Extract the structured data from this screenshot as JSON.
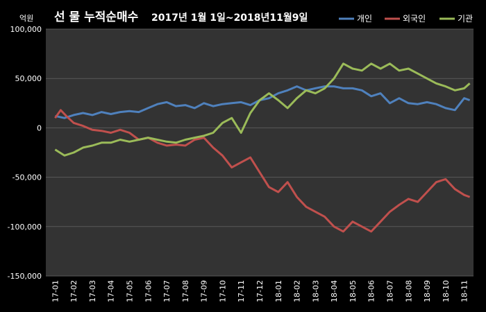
{
  "chart_data": {
    "type": "line",
    "title_main": "선 물 누적순매수",
    "title_period": "2017년 1월 1일~2018년11월9일",
    "unit_label": "억원",
    "ylim": [
      -150000,
      100000
    ],
    "y_ticks": [
      100000,
      50000,
      0,
      -50000,
      -100000,
      -150000
    ],
    "y_tick_labels": [
      "100,000",
      "50,000",
      "0",
      "-50,000",
      "-100,000",
      "-150,000"
    ],
    "x_labels": [
      "17-01",
      "17-02",
      "17-03",
      "17-04",
      "17-05",
      "17-06",
      "17-07",
      "17-08",
      "17-09",
      "17-10",
      "17-11",
      "17-12",
      "18-01",
      "18-02",
      "18-03",
      "18-04",
      "18-05",
      "18-06",
      "18-07",
      "18-08",
      "18-09",
      "18-10",
      "18-11"
    ],
    "grid": true,
    "legend_position": "top-right",
    "series": [
      {
        "name": "개인",
        "color": "#4F81BD",
        "values": [
          [
            0,
            12000
          ],
          [
            0.5,
            10000
          ],
          [
            1,
            13000
          ],
          [
            1.5,
            15000
          ],
          [
            2,
            13000
          ],
          [
            2.5,
            16000
          ],
          [
            3,
            14000
          ],
          [
            3.5,
            16000
          ],
          [
            4,
            17000
          ],
          [
            4.5,
            16000
          ],
          [
            5,
            20000
          ],
          [
            5.5,
            24000
          ],
          [
            6,
            26000
          ],
          [
            6.5,
            22000
          ],
          [
            7,
            23000
          ],
          [
            7.5,
            20000
          ],
          [
            8,
            25000
          ],
          [
            8.5,
            22000
          ],
          [
            9,
            24000
          ],
          [
            9.5,
            25000
          ],
          [
            10,
            26000
          ],
          [
            10.5,
            23000
          ],
          [
            11,
            28000
          ],
          [
            11.5,
            30000
          ],
          [
            12,
            35000
          ],
          [
            12.5,
            38000
          ],
          [
            13,
            42000
          ],
          [
            13.5,
            38000
          ],
          [
            14,
            40000
          ],
          [
            14.5,
            42000
          ],
          [
            15,
            42000
          ],
          [
            15.5,
            40000
          ],
          [
            16,
            40000
          ],
          [
            16.5,
            38000
          ],
          [
            17,
            32000
          ],
          [
            17.5,
            35000
          ],
          [
            18,
            25000
          ],
          [
            18.5,
            30000
          ],
          [
            19,
            25000
          ],
          [
            19.5,
            24000
          ],
          [
            20,
            26000
          ],
          [
            20.5,
            24000
          ],
          [
            21,
            20000
          ],
          [
            21.5,
            18000
          ],
          [
            22,
            30000
          ],
          [
            22.3,
            28000
          ]
        ]
      },
      {
        "name": "외국인",
        "color": "#C0504D",
        "values": [
          [
            0,
            10000
          ],
          [
            0.3,
            18000
          ],
          [
            0.6,
            12000
          ],
          [
            1,
            5000
          ],
          [
            1.5,
            2000
          ],
          [
            2,
            -2000
          ],
          [
            2.5,
            -3000
          ],
          [
            3,
            -5000
          ],
          [
            3.5,
            -2000
          ],
          [
            4,
            -5000
          ],
          [
            4.5,
            -12000
          ],
          [
            5,
            -10000
          ],
          [
            5.5,
            -15000
          ],
          [
            6,
            -18000
          ],
          [
            6.5,
            -17000
          ],
          [
            7,
            -18000
          ],
          [
            7.5,
            -12000
          ],
          [
            8,
            -10000
          ],
          [
            8.5,
            -20000
          ],
          [
            9,
            -28000
          ],
          [
            9.5,
            -40000
          ],
          [
            10,
            -35000
          ],
          [
            10.5,
            -30000
          ],
          [
            11,
            -45000
          ],
          [
            11.5,
            -60000
          ],
          [
            12,
            -65000
          ],
          [
            12.5,
            -55000
          ],
          [
            13,
            -70000
          ],
          [
            13.5,
            -80000
          ],
          [
            14,
            -85000
          ],
          [
            14.5,
            -90000
          ],
          [
            15,
            -100000
          ],
          [
            15.5,
            -105000
          ],
          [
            16,
            -95000
          ],
          [
            16.5,
            -100000
          ],
          [
            17,
            -105000
          ],
          [
            17.5,
            -95000
          ],
          [
            18,
            -85000
          ],
          [
            18.5,
            -78000
          ],
          [
            19,
            -72000
          ],
          [
            19.5,
            -75000
          ],
          [
            20,
            -65000
          ],
          [
            20.5,
            -55000
          ],
          [
            21,
            -52000
          ],
          [
            21.5,
            -62000
          ],
          [
            22,
            -68000
          ],
          [
            22.3,
            -70000
          ]
        ]
      },
      {
        "name": "기관",
        "color": "#9BBB59",
        "values": [
          [
            0,
            -22000
          ],
          [
            0.5,
            -28000
          ],
          [
            1,
            -25000
          ],
          [
            1.5,
            -20000
          ],
          [
            2,
            -18000
          ],
          [
            2.5,
            -15000
          ],
          [
            3,
            -15000
          ],
          [
            3.5,
            -12000
          ],
          [
            4,
            -14000
          ],
          [
            4.5,
            -12000
          ],
          [
            5,
            -10000
          ],
          [
            5.5,
            -12000
          ],
          [
            6,
            -14000
          ],
          [
            6.5,
            -15000
          ],
          [
            7,
            -12000
          ],
          [
            7.5,
            -10000
          ],
          [
            8,
            -8000
          ],
          [
            8.5,
            -5000
          ],
          [
            9,
            5000
          ],
          [
            9.5,
            10000
          ],
          [
            10,
            -5000
          ],
          [
            10.5,
            15000
          ],
          [
            11,
            28000
          ],
          [
            11.5,
            35000
          ],
          [
            12,
            28000
          ],
          [
            12.5,
            20000
          ],
          [
            13,
            30000
          ],
          [
            13.5,
            38000
          ],
          [
            14,
            35000
          ],
          [
            14.5,
            40000
          ],
          [
            15,
            50000
          ],
          [
            15.5,
            65000
          ],
          [
            16,
            60000
          ],
          [
            16.5,
            58000
          ],
          [
            17,
            65000
          ],
          [
            17.5,
            60000
          ],
          [
            18,
            65000
          ],
          [
            18.5,
            58000
          ],
          [
            19,
            60000
          ],
          [
            19.5,
            55000
          ],
          [
            20,
            50000
          ],
          [
            20.5,
            45000
          ],
          [
            21,
            42000
          ],
          [
            21.5,
            38000
          ],
          [
            22,
            40000
          ],
          [
            22.3,
            45000
          ]
        ]
      }
    ]
  }
}
